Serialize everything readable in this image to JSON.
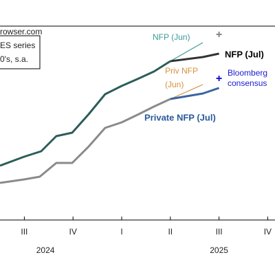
{
  "chart_data": {
    "type": "line",
    "source": "rowser.com",
    "legend_lines": [
      "ES series",
      "0's, s.a."
    ],
    "xlim": [
      0,
      16.95
    ],
    "ylim": [
      80,
      362
    ],
    "xticks": [
      {
        "value": 1.5,
        "label": "III"
      },
      {
        "value": 4.5,
        "label": "IV"
      },
      {
        "value": 7.5,
        "label": "I"
      },
      {
        "value": 10.5,
        "label": "II"
      },
      {
        "value": 13.5,
        "label": "III"
      },
      {
        "value": 16.5,
        "label": "IV"
      }
    ],
    "year_labels": [
      {
        "value": 2.8,
        "label": "2024"
      },
      {
        "value": 13.5,
        "label": "2025"
      }
    ],
    "series": [
      {
        "name": "NFP",
        "color": "#2b5e58",
        "width": 3,
        "x": [
          0,
          1.48,
          2.54,
          3.47,
          4.45,
          5.47,
          6.48,
          7.5,
          8.47,
          9.49,
          10.5
        ],
        "values": [
          159,
          172,
          180,
          202,
          207,
          234,
          263,
          275,
          285,
          296,
          311
        ]
      },
      {
        "name": "Private NFP",
        "color": "#8a8a8a",
        "width": 3,
        "x": [
          0,
          1.48,
          2.45,
          3.47,
          4.45,
          5.47,
          6.48,
          7.5,
          8.47,
          9.49,
          10.5
        ],
        "values": [
          134,
          139,
          143,
          163,
          163,
          187,
          214,
          222,
          233,
          245,
          256
        ]
      },
      {
        "name": "NFP (Jun)",
        "color": "#3a9c9a",
        "width": 1.2,
        "x": [
          10.5,
          12.5
        ],
        "values": [
          311,
          338
        ]
      },
      {
        "name": "Priv NFP (Jun)",
        "color": "#d4913f",
        "width": 1.2,
        "x": [
          10.5,
          12.5
        ],
        "values": [
          256,
          277
        ]
      },
      {
        "name": "NFP (Jul)",
        "color": "#333333",
        "width": 3,
        "x": [
          10.5,
          11.5,
          12.5,
          13.5
        ],
        "values": [
          311,
          314,
          317,
          322
        ]
      },
      {
        "name": "Private NFP (Jul)",
        "color": "#3a64a0",
        "width": 3,
        "x": [
          10.5,
          11.5,
          12.5,
          13.5
        ],
        "values": [
          256,
          260,
          264,
          272
        ]
      }
    ],
    "markers": [
      {
        "color": "#888888",
        "x": 13.5,
        "value": 350
      },
      {
        "name": "Bloomberg consensus",
        "color": "#1a1ad0",
        "x": 13.5,
        "value": 286
      }
    ],
    "labels": [
      {
        "text": "NFP (Jun)",
        "color": "#3a9c9a",
        "bold": false
      },
      {
        "text": "NFP (Jul)",
        "color": "#000000",
        "bold": true
      },
      {
        "text": "Priv NFP",
        "color": "#d4913f",
        "bold": false
      },
      {
        "text": "(Jun)",
        "color": "#d4913f",
        "bold": false
      },
      {
        "text": "Bloomberg",
        "color": "#1a1ad0",
        "bold": false
      },
      {
        "text": "consensus",
        "color": "#1a1ad0",
        "bold": false
      },
      {
        "text": "Private NFP (Jul)",
        "color": "#2a5a9a",
        "bold": true
      }
    ]
  }
}
